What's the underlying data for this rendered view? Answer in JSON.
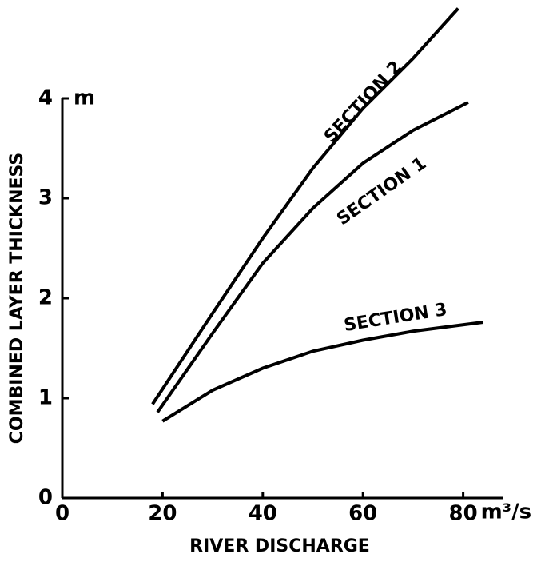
{
  "chart_data": {
    "type": "line",
    "xlabel": "RIVER DISCHARGE",
    "ylabel": "COMBINED LAYER THICKNESS",
    "xunit": "m³/s",
    "yunit": "m",
    "xlim": [
      0,
      88
    ],
    "xticks": [
      0,
      20,
      40,
      60,
      80
    ],
    "ylim": [
      0,
      5
    ],
    "yticks": [
      0,
      1,
      2,
      3,
      4
    ],
    "series": [
      {
        "name": "SECTION 2",
        "color": "#000000",
        "x": [
          18,
          30,
          40,
          50,
          60,
          70,
          79
        ],
        "values": [
          0.94,
          1.85,
          2.6,
          3.3,
          3.9,
          4.4,
          4.9
        ]
      },
      {
        "name": "SECTION 1",
        "color": "#000000",
        "x": [
          19,
          30,
          40,
          50,
          60,
          70,
          81
        ],
        "values": [
          0.86,
          1.65,
          2.35,
          2.9,
          3.35,
          3.68,
          3.96
        ]
      },
      {
        "name": "SECTION 3",
        "color": "#000000",
        "x": [
          20,
          30,
          40,
          50,
          60,
          70,
          84
        ],
        "values": [
          0.77,
          1.08,
          1.3,
          1.47,
          1.58,
          1.67,
          1.76
        ]
      }
    ]
  }
}
